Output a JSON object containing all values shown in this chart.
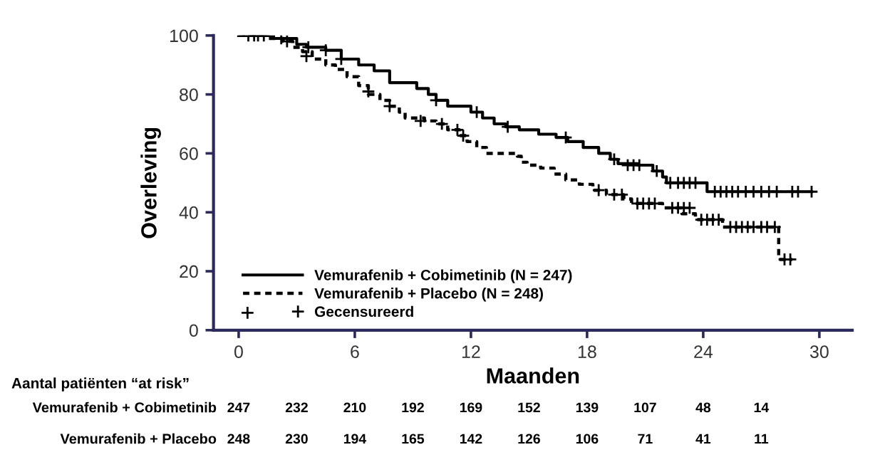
{
  "chart_data": {
    "type": "step",
    "xlabel": "Maanden",
    "ylabel": "Overleving",
    "xlim": [
      -1.3,
      31.7
    ],
    "ylim": [
      0,
      100
    ],
    "xticks": [
      0,
      6,
      12,
      18,
      24,
      30
    ],
    "yticks": [
      0,
      20,
      40,
      60,
      80,
      100
    ],
    "grid": false,
    "legend": "bottom left",
    "series": [
      {
        "name": "Vemurafenib + Cobimetinib (N = 247)",
        "color": "#000000",
        "line_style": "solid",
        "marker": "none",
        "x": [
          0,
          1.8,
          3.0,
          3.5,
          4.5,
          5.3,
          6.2,
          7.0,
          7.8,
          9.2,
          9.8,
          10.2,
          10.8,
          12.0,
          12.6,
          13.2,
          13.8,
          14.5,
          15.5,
          16.4,
          17.0,
          17.8,
          18.6,
          19.2,
          19.6,
          20.6,
          21.4,
          21.9,
          22.1,
          24.2,
          29.6
        ],
        "values": [
          100,
          99,
          97,
          96,
          95,
          92,
          90,
          88,
          84,
          82,
          80,
          78,
          76,
          74,
          72,
          70,
          69,
          68,
          66.5,
          65.4,
          64,
          62,
          60,
          58,
          56.5,
          56,
          54,
          52,
          50,
          47,
          47
        ]
      },
      {
        "name": "Vemurafenib + Placebo (N = 248)",
        "color": "#000000",
        "line_style": "dashed",
        "marker": "none",
        "x": [
          0,
          1.5,
          2.3,
          2.8,
          3.3,
          3.8,
          4.5,
          5.0,
          5.6,
          6.2,
          6.7,
          7.3,
          7.8,
          8.3,
          8.6,
          9.6,
          10.2,
          10.8,
          11.4,
          11.8,
          12.3,
          12.8,
          14.4,
          14.6,
          14.9,
          15.6,
          16.3,
          16.9,
          17.6,
          18.3,
          19.0,
          19.9,
          20.3,
          21.9,
          22.9,
          23.6,
          25.0,
          27.9,
          28.6
        ],
        "values": [
          100,
          99,
          98,
          96,
          94.5,
          92,
          90,
          88.5,
          86,
          83,
          80,
          78,
          76,
          74,
          72,
          71,
          70,
          68,
          66,
          64,
          62,
          60,
          59,
          57,
          56,
          55,
          53,
          51,
          49.5,
          47.5,
          46,
          44.5,
          43,
          41.5,
          39.5,
          37.5,
          35,
          24,
          24
        ]
      },
      {
        "name": "Gecensureerd",
        "type": "scatter",
        "marker": "cross",
        "color": "#000000",
        "x": [
          0.5,
          0.8,
          1.0,
          1.3,
          2.2,
          3.6,
          4.5,
          5.3,
          10.2,
          12.3,
          13.9,
          16.9,
          19.4,
          20.1,
          20.4,
          20.7,
          21.6,
          22.3,
          22.7,
          23.0,
          23.3,
          23.6,
          24.6,
          24.9,
          25.2,
          25.5,
          25.8,
          26.2,
          26.6,
          27.0,
          27.4,
          27.8,
          28.6,
          28.9,
          29.6,
          2.5,
          3.5,
          6.7,
          7.8,
          9.4,
          10.5,
          11.3,
          11.6,
          18.6,
          19.4,
          19.8,
          20.6,
          20.9,
          21.2,
          21.5,
          22.4,
          22.7,
          23.0,
          23.3,
          23.9,
          24.2,
          24.5,
          24.8,
          25.4,
          25.7,
          26.0,
          26.3,
          26.6,
          27.0,
          27.3,
          27.7,
          28.2,
          28.5
        ],
        "values": [
          100,
          100,
          100,
          100,
          99,
          96,
          95,
          92,
          78,
          74,
          69,
          65.4,
          58,
          56,
          56,
          56,
          54,
          50,
          50,
          50,
          50,
          50,
          47,
          47,
          47,
          47,
          47,
          47,
          47,
          47,
          47,
          47,
          47,
          47,
          47,
          98,
          93,
          81,
          76,
          71,
          70,
          68,
          66,
          47.5,
          46,
          46,
          43,
          43,
          43,
          43,
          41.5,
          41.5,
          41.5,
          41.5,
          37.5,
          37.5,
          37.5,
          37.5,
          35,
          35,
          35,
          35,
          35,
          35,
          35,
          35,
          24,
          24
        ]
      }
    ],
    "annotations": [
      "Aantal patiënten “at risk”",
      "Vemurafenib + Cobimetinib",
      "247",
      "232",
      "210",
      "192",
      "169",
      "152",
      "139",
      "107",
      "48",
      "14",
      "Vemurafenib + Placebo",
      "248",
      "230",
      "194",
      "165",
      "142",
      "126",
      "106",
      "71",
      "41",
      "11"
    ]
  }
}
